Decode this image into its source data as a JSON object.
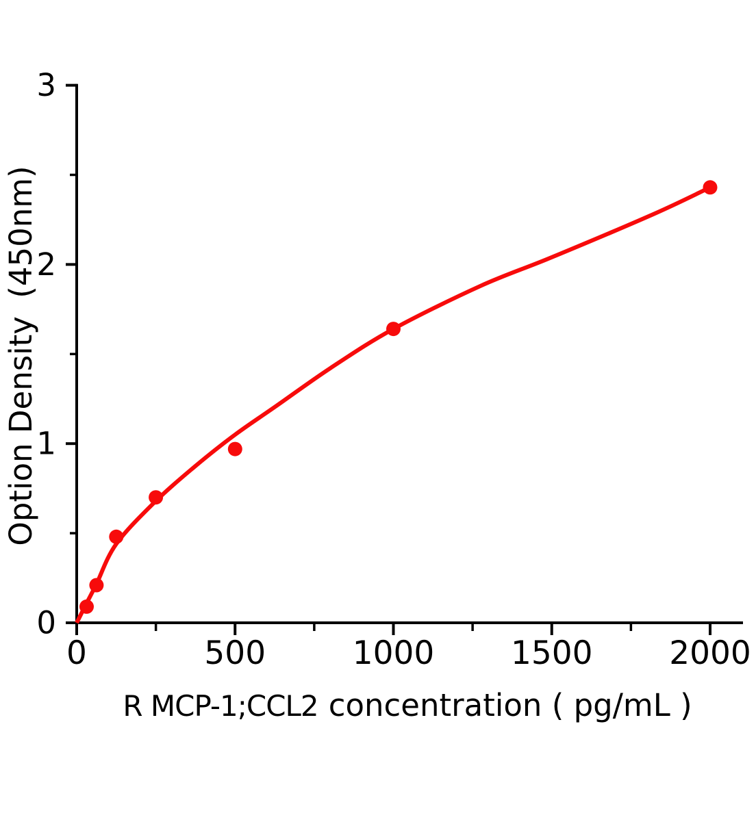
{
  "figure": {
    "background_color": "#ffffff"
  },
  "chart_data": {
    "type": "scatter",
    "title": "",
    "xlabel": "R MCP-1;CCL2 concentration ( pg/mL )",
    "xlabel_analyte": "R MCP-1;CCL2",
    "xlabel_rest": "concentration ( pg/mL )",
    "ylabel": "Option Density (450nm)",
    "ylabel_main": "Option Density",
    "ylabel_unit": "(450nm)",
    "xlim": [
      0,
      2103
    ],
    "ylim": [
      0,
      3
    ],
    "x_ticks_major": [
      0,
      500,
      1000,
      1500,
      2000
    ],
    "x_ticks_minor": [
      250,
      750,
      1250,
      1750
    ],
    "y_ticks_major": [
      0,
      1,
      2,
      3
    ],
    "y_ticks_minor": [
      0.5,
      1.5,
      2.5
    ],
    "grid": false,
    "legend": null,
    "series": [
      {
        "name": "standard-points",
        "type": "scatter",
        "x": [
          31.25,
          62.5,
          125,
          250,
          500,
          1000,
          2000
        ],
        "y": [
          0.09,
          0.21,
          0.48,
          0.7,
          0.97,
          1.64,
          2.43
        ]
      },
      {
        "name": "fitted-curve",
        "type": "line",
        "x": [
          0,
          30,
          62,
          125,
          250,
          375,
          500,
          630,
          800,
          1000,
          1275,
          1500,
          1820,
          2000
        ],
        "y": [
          0,
          0.105,
          0.215,
          0.44,
          0.68,
          0.875,
          1.05,
          1.21,
          1.42,
          1.64,
          1.88,
          2.04,
          2.28,
          2.43
        ]
      }
    ],
    "colors": {
      "marker": "#f70b0b",
      "curve": "#f70b0b",
      "axis": "#000000",
      "background": "#ffffff"
    }
  }
}
